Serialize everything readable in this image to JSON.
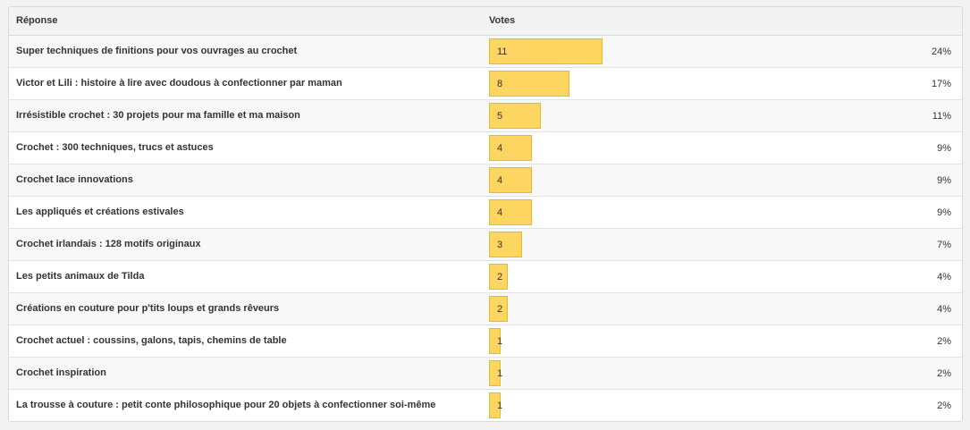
{
  "table": {
    "headers": {
      "answer": "Réponse",
      "votes": "Votes"
    },
    "rows": [
      {
        "answer": "Super techniques de finitions pour vos ouvrages au crochet",
        "votes": "11",
        "percent": "24%",
        "share": 0.24
      },
      {
        "answer": "Victor et Lili : histoire à lire avec doudous à confectionner par maman",
        "votes": "8",
        "percent": "17%",
        "share": 0.17
      },
      {
        "answer": "Irrésistible crochet : 30 projets pour ma famille et ma maison",
        "votes": "5",
        "percent": "11%",
        "share": 0.11
      },
      {
        "answer": "Crochet : 300 techniques, trucs et astuces",
        "votes": "4",
        "percent": "9%",
        "share": 0.09
      },
      {
        "answer": "Crochet lace innovations",
        "votes": "4",
        "percent": "9%",
        "share": 0.09
      },
      {
        "answer": "Les appliqués et créations estivales",
        "votes": "4",
        "percent": "9%",
        "share": 0.09
      },
      {
        "answer": "Crochet irlandais : 128 motifs originaux",
        "votes": "3",
        "percent": "7%",
        "share": 0.07
      },
      {
        "answer": "Les petits animaux de Tilda",
        "votes": "2",
        "percent": "4%",
        "share": 0.04
      },
      {
        "answer": "Créations en couture pour p'tits loups et grands rêveurs",
        "votes": "2",
        "percent": "4%",
        "share": 0.04
      },
      {
        "answer": "Crochet actuel : coussins, galons, tapis, chemins de table",
        "votes": "1",
        "percent": "2%",
        "share": 0.02
      },
      {
        "answer": "Crochet inspiration",
        "votes": "1",
        "percent": "2%",
        "share": 0.02
      },
      {
        "answer": "La trousse à couture : petit conte philosophique pour 20 objets à confectionner soi-même",
        "votes": "1",
        "percent": "2%",
        "share": 0.02
      }
    ]
  },
  "colors": {
    "bar_fill": "#fcd660",
    "bar_border": "#e6ba2e"
  }
}
